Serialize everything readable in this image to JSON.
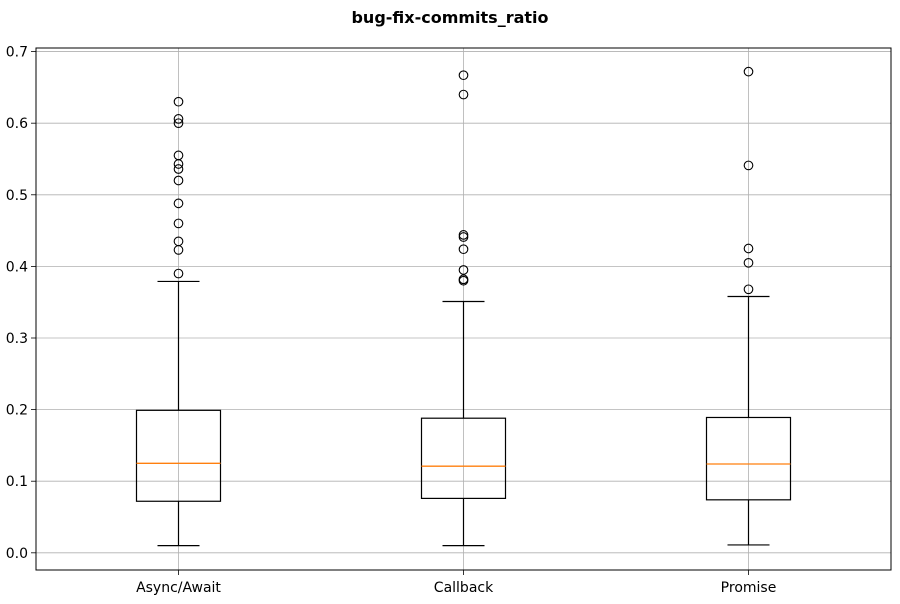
{
  "chart_data": {
    "type": "box",
    "title": "bug-fix-commits_ratio",
    "categories": [
      "Async/Await",
      "Callback",
      "Promise"
    ],
    "ylim": [
      -0.024,
      0.705
    ],
    "yticks": [
      0.0,
      0.1,
      0.2,
      0.3,
      0.4,
      0.5,
      0.6,
      0.7
    ],
    "ytick_labels": [
      "0.0",
      "0.1",
      "0.2",
      "0.3",
      "0.4",
      "0.5",
      "0.6",
      "0.7"
    ],
    "grid": true,
    "boxes": [
      {
        "name": "Async/Await",
        "whisker_low": 0.01,
        "q1": 0.072,
        "median": 0.125,
        "q3": 0.199,
        "whisker_high": 0.379,
        "outliers": [
          0.39,
          0.423,
          0.435,
          0.46,
          0.488,
          0.52,
          0.536,
          0.543,
          0.555,
          0.6,
          0.606,
          0.63
        ]
      },
      {
        "name": "Callback",
        "whisker_low": 0.01,
        "q1": 0.076,
        "median": 0.121,
        "q3": 0.188,
        "whisker_high": 0.351,
        "outliers": [
          0.38,
          0.382,
          0.395,
          0.424,
          0.441,
          0.444,
          0.64,
          0.667
        ]
      },
      {
        "name": "Promise",
        "whisker_low": 0.011,
        "q1": 0.074,
        "median": 0.124,
        "q3": 0.189,
        "whisker_high": 0.358,
        "outliers": [
          0.368,
          0.405,
          0.425,
          0.541,
          0.672
        ]
      }
    ],
    "colors": {
      "box": "#000000",
      "median": "#ff7f0e",
      "grid": "#b0b0b0"
    }
  }
}
